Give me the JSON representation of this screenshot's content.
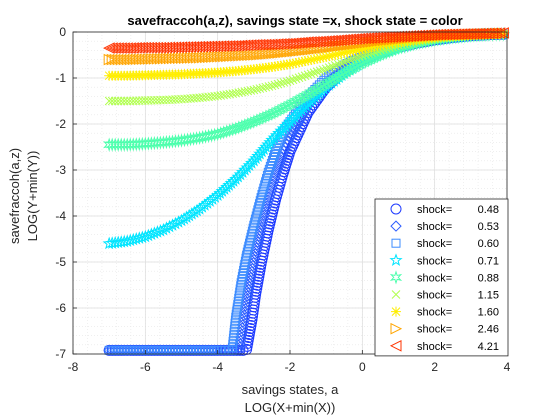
{
  "chart_data": {
    "type": "scatter",
    "title": "savefraccoh(a,z), savings state =x, shock state = color",
    "xlabel_lines": [
      "savings states, a",
      "LOG(X+min(X))"
    ],
    "ylabel_lines": [
      "savefraccoh(a,z)",
      "LOG(Y+min(Y))"
    ],
    "xlim": [
      -8,
      4
    ],
    "ylim": [
      -7,
      0
    ],
    "xticks": [
      "-8",
      "-6",
      "-4",
      "-2",
      "0",
      "2",
      "4"
    ],
    "yticks": [
      "-7",
      "-6",
      "-5",
      "-4",
      "-3",
      "-2",
      "-1",
      "0"
    ],
    "grid": true,
    "minor_grid": true,
    "legend_position": "bottom-right",
    "legend_prefix": "shock=",
    "series": [
      {
        "name": "0.48",
        "marker": "circle",
        "color": "#1f3bff",
        "points": [
          [
            -7,
            -6.92
          ],
          [
            -6,
            -6.92
          ],
          [
            -5,
            -6.92
          ],
          [
            -4,
            -6.92
          ],
          [
            -3.3,
            -6.92
          ],
          [
            -3.2,
            -6.9
          ],
          [
            -3.05,
            -6.25
          ],
          [
            -2.95,
            -5.7
          ],
          [
            -2.8,
            -5.05
          ],
          [
            -2.6,
            -4.3
          ],
          [
            -2.4,
            -3.65
          ],
          [
            -2.2,
            -3.1
          ],
          [
            -2,
            -2.6
          ],
          [
            -1.5,
            -1.75
          ],
          [
            -1,
            -1.2
          ],
          [
            -0.5,
            -0.85
          ],
          [
            0,
            -0.62
          ],
          [
            0.5,
            -0.45
          ],
          [
            1,
            -0.33
          ],
          [
            1.5,
            -0.24
          ],
          [
            2,
            -0.17
          ],
          [
            2.5,
            -0.12
          ],
          [
            3,
            -0.08
          ],
          [
            3.5,
            -0.06
          ],
          [
            3.9,
            -0.05
          ]
        ]
      },
      {
        "name": "0.53",
        "marker": "diamond",
        "color": "#2c5cff",
        "points": [
          [
            -7,
            -6.92
          ],
          [
            -6,
            -6.92
          ],
          [
            -5,
            -6.92
          ],
          [
            -4,
            -6.92
          ],
          [
            -3.4,
            -6.92
          ],
          [
            -3.3,
            -6.3
          ],
          [
            -3.15,
            -5.6
          ],
          [
            -3,
            -4.95
          ],
          [
            -2.8,
            -4.25
          ],
          [
            -2.6,
            -3.65
          ],
          [
            -2.4,
            -3.1
          ],
          [
            -2.2,
            -2.65
          ],
          [
            -2,
            -2.3
          ],
          [
            -1.5,
            -1.6
          ],
          [
            -1,
            -1.1
          ],
          [
            -0.5,
            -0.8
          ],
          [
            0,
            -0.58
          ],
          [
            0.5,
            -0.42
          ],
          [
            1,
            -0.3
          ],
          [
            1.5,
            -0.22
          ],
          [
            2,
            -0.15
          ],
          [
            2.5,
            -0.11
          ],
          [
            3,
            -0.08
          ],
          [
            3.5,
            -0.06
          ],
          [
            3.9,
            -0.05
          ]
        ]
      },
      {
        "name": "0.60",
        "marker": "square",
        "color": "#3d8cff",
        "points": [
          [
            -7,
            -6.92
          ],
          [
            -6,
            -6.92
          ],
          [
            -5,
            -6.92
          ],
          [
            -4,
            -6.92
          ],
          [
            -3.6,
            -6.92
          ],
          [
            -3.5,
            -6.2
          ],
          [
            -3.35,
            -5.45
          ],
          [
            -3.2,
            -4.85
          ],
          [
            -3,
            -4.2
          ],
          [
            -2.8,
            -3.6
          ],
          [
            -2.6,
            -3.05
          ],
          [
            -2.4,
            -2.6
          ],
          [
            -2.2,
            -2.2
          ],
          [
            -2,
            -1.95
          ],
          [
            -1.5,
            -1.4
          ],
          [
            -1,
            -1.0
          ],
          [
            -0.5,
            -0.72
          ],
          [
            0,
            -0.52
          ],
          [
            0.5,
            -0.38
          ],
          [
            1,
            -0.28
          ],
          [
            1.5,
            -0.2
          ],
          [
            2,
            -0.14
          ],
          [
            2.5,
            -0.1
          ],
          [
            3,
            -0.07
          ],
          [
            3.5,
            -0.05
          ],
          [
            3.9,
            -0.04
          ]
        ]
      },
      {
        "name": "0.71",
        "marker": "star",
        "color": "#00e5ff",
        "points": [
          [
            -7,
            -4.6
          ],
          [
            -6.5,
            -4.55
          ],
          [
            -6,
            -4.45
          ],
          [
            -5.5,
            -4.3
          ],
          [
            -5,
            -4.1
          ],
          [
            -4.5,
            -3.85
          ],
          [
            -4,
            -3.55
          ],
          [
            -3.5,
            -3.2
          ],
          [
            -3,
            -2.8
          ],
          [
            -2.5,
            -2.35
          ],
          [
            -2,
            -1.95
          ],
          [
            -1.5,
            -1.55
          ],
          [
            -1,
            -1.2
          ],
          [
            -0.5,
            -0.9
          ],
          [
            0,
            -0.65
          ],
          [
            0.5,
            -0.47
          ],
          [
            1,
            -0.34
          ],
          [
            1.5,
            -0.24
          ],
          [
            2,
            -0.17
          ],
          [
            2.5,
            -0.12
          ],
          [
            3,
            -0.08
          ],
          [
            3.5,
            -0.06
          ],
          [
            3.9,
            -0.05
          ]
        ]
      },
      {
        "name": "0.88",
        "marker": "hexagram",
        "color": "#4dffad",
        "points": [
          [
            -7,
            -2.45
          ],
          [
            -6.5,
            -2.45
          ],
          [
            -6,
            -2.43
          ],
          [
            -5.5,
            -2.4
          ],
          [
            -5,
            -2.36
          ],
          [
            -4.5,
            -2.3
          ],
          [
            -4,
            -2.22
          ],
          [
            -3.5,
            -2.1
          ],
          [
            -3,
            -1.95
          ],
          [
            -2.5,
            -1.78
          ],
          [
            -2,
            -1.58
          ],
          [
            -1.5,
            -1.36
          ],
          [
            -1,
            -1.13
          ],
          [
            -0.5,
            -0.9
          ],
          [
            0,
            -0.68
          ],
          [
            0.5,
            -0.5
          ],
          [
            1,
            -0.35
          ],
          [
            1.5,
            -0.25
          ],
          [
            2,
            -0.17
          ],
          [
            2.5,
            -0.12
          ],
          [
            3,
            -0.08
          ],
          [
            3.5,
            -0.06
          ],
          [
            3.9,
            -0.05
          ]
        ]
      },
      {
        "name": "1.15",
        "marker": "x",
        "color": "#b0ff4d",
        "points": [
          [
            -7,
            -1.5
          ],
          [
            -6.5,
            -1.5
          ],
          [
            -6,
            -1.49
          ],
          [
            -5.5,
            -1.48
          ],
          [
            -5,
            -1.46
          ],
          [
            -4.5,
            -1.43
          ],
          [
            -4,
            -1.39
          ],
          [
            -3.5,
            -1.33
          ],
          [
            -3,
            -1.26
          ],
          [
            -2.5,
            -1.17
          ],
          [
            -2,
            -1.06
          ],
          [
            -1.5,
            -0.93
          ],
          [
            -1,
            -0.8
          ],
          [
            -0.5,
            -0.65
          ],
          [
            0,
            -0.51
          ],
          [
            0.5,
            -0.39
          ],
          [
            1,
            -0.29
          ],
          [
            1.5,
            -0.21
          ],
          [
            2,
            -0.15
          ],
          [
            2.5,
            -0.11
          ],
          [
            3,
            -0.08
          ],
          [
            3.5,
            -0.06
          ],
          [
            3.9,
            -0.05
          ]
        ]
      },
      {
        "name": "1.60",
        "marker": "asterisk",
        "color": "#ffee00",
        "points": [
          [
            -7,
            -0.95
          ],
          [
            -6.5,
            -0.95
          ],
          [
            -6,
            -0.94
          ],
          [
            -5.5,
            -0.93
          ],
          [
            -5,
            -0.92
          ],
          [
            -4.5,
            -0.9
          ],
          [
            -4,
            -0.88
          ],
          [
            -3.5,
            -0.85
          ],
          [
            -3,
            -0.81
          ],
          [
            -2.5,
            -0.76
          ],
          [
            -2,
            -0.7
          ],
          [
            -1.5,
            -0.62
          ],
          [
            -1,
            -0.54
          ],
          [
            -0.5,
            -0.45
          ],
          [
            0,
            -0.37
          ],
          [
            0.5,
            -0.29
          ],
          [
            1,
            -0.22
          ],
          [
            1.5,
            -0.17
          ],
          [
            2,
            -0.12
          ],
          [
            2.5,
            -0.09
          ],
          [
            3,
            -0.07
          ],
          [
            3.5,
            -0.05
          ],
          [
            3.9,
            -0.04
          ]
        ]
      },
      {
        "name": "2.46",
        "marker": "triangle-right",
        "color": "#ffa500",
        "points": [
          [
            -7,
            -0.6
          ],
          [
            -6.5,
            -0.6
          ],
          [
            -6,
            -0.59
          ],
          [
            -5.5,
            -0.58
          ],
          [
            -5,
            -0.57
          ],
          [
            -4.5,
            -0.56
          ],
          [
            -4,
            -0.54
          ],
          [
            -3.5,
            -0.52
          ],
          [
            -3,
            -0.5
          ],
          [
            -2.5,
            -0.47
          ],
          [
            -2,
            -0.43
          ],
          [
            -1.5,
            -0.39
          ],
          [
            -1,
            -0.34
          ],
          [
            -0.5,
            -0.29
          ],
          [
            0,
            -0.24
          ],
          [
            0.5,
            -0.19
          ],
          [
            1,
            -0.15
          ],
          [
            1.5,
            -0.11
          ],
          [
            2,
            -0.08
          ],
          [
            2.5,
            -0.06
          ],
          [
            3,
            -0.05
          ],
          [
            3.5,
            -0.04
          ],
          [
            3.9,
            -0.03
          ]
        ]
      },
      {
        "name": "4.21",
        "marker": "triangle-left",
        "color": "#ff3300",
        "points": [
          [
            -7,
            -0.35
          ],
          [
            -6.5,
            -0.35
          ],
          [
            -6,
            -0.34
          ],
          [
            -5.5,
            -0.34
          ],
          [
            -5,
            -0.33
          ],
          [
            -4.5,
            -0.32
          ],
          [
            -4,
            -0.31
          ],
          [
            -3.5,
            -0.3
          ],
          [
            -3,
            -0.28
          ],
          [
            -2.5,
            -0.27
          ],
          [
            -2,
            -0.25
          ],
          [
            -1.5,
            -0.22
          ],
          [
            -1,
            -0.2
          ],
          [
            -0.5,
            -0.17
          ],
          [
            0,
            -0.14
          ],
          [
            0.5,
            -0.12
          ],
          [
            1,
            -0.1
          ],
          [
            1.5,
            -0.08
          ],
          [
            2,
            -0.06
          ],
          [
            2.5,
            -0.05
          ],
          [
            3,
            -0.04
          ],
          [
            3.5,
            -0.03
          ],
          [
            3.9,
            -0.02
          ]
        ]
      }
    ]
  }
}
